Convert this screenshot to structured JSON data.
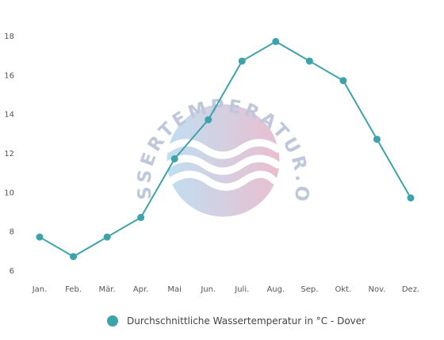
{
  "watermark": {
    "text": "WASSERTEMPERATUR.ORG"
  },
  "chart_data": {
    "type": "line",
    "categories": [
      "Jan.",
      "Feb.",
      "Mär.",
      "Apr.",
      "Mai",
      "Jun.",
      "Juli.",
      "Aug.",
      "Sep.",
      "Okt.",
      "Nov.",
      "Dez."
    ],
    "series": [
      {
        "name": "Durchschnittliche Wassertemperatur in °C - Dover",
        "values": [
          7.7,
          6.7,
          7.7,
          8.7,
          11.7,
          13.7,
          16.7,
          17.7,
          16.7,
          15.7,
          12.7,
          9.7
        ],
        "color": "#3ea2ab"
      }
    ],
    "yticks": [
      6,
      8,
      10,
      12,
      14,
      16,
      18
    ],
    "ylim": [
      6,
      18
    ],
    "grid": false,
    "legend_position": "bottom-center"
  }
}
